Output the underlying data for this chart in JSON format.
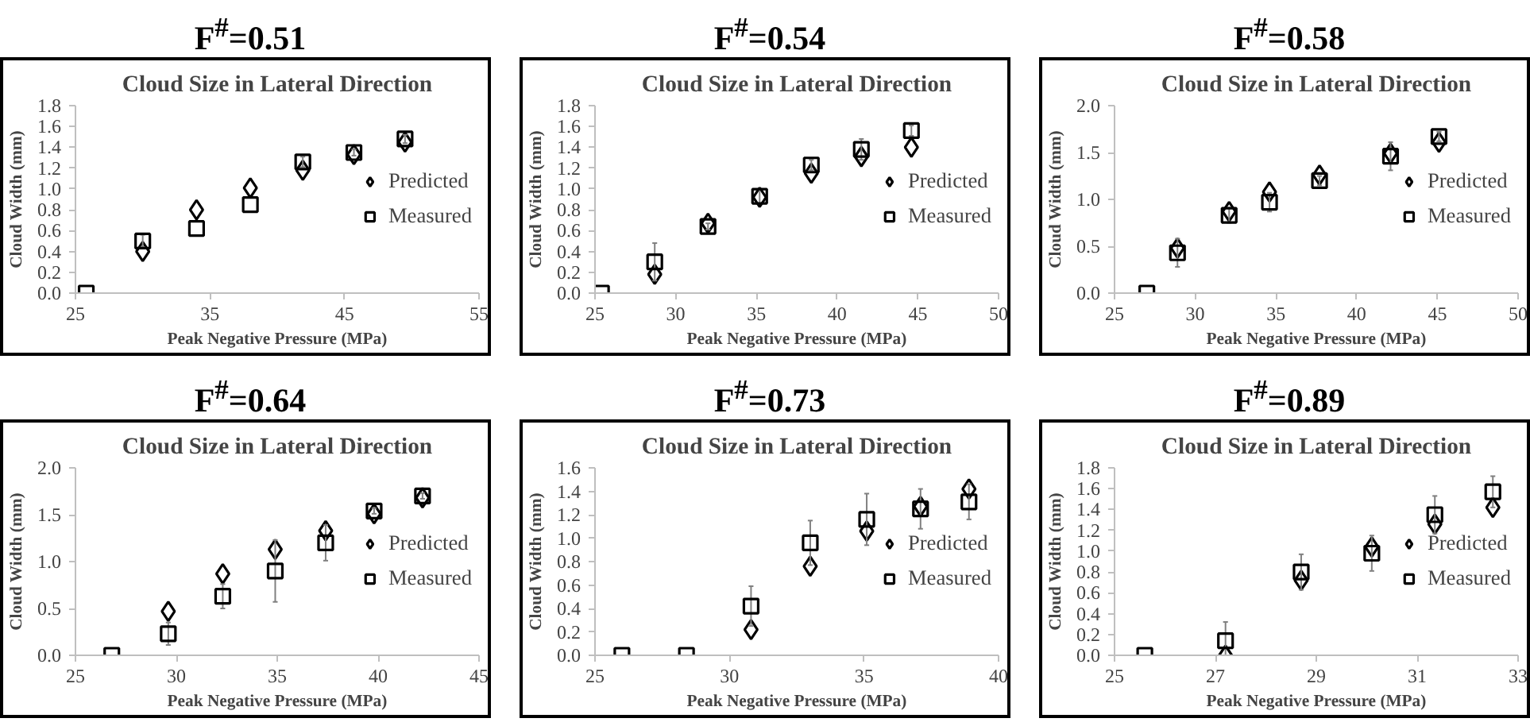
{
  "chart_data": [
    {
      "type": "scatter",
      "title": "F$^{#}$=0.51",
      "subtitle": "Cloud Size in Lateral Direction",
      "xlabel": "Peak Negative Pressure (MPa)",
      "ylabel": "Cloud Width (mm)",
      "xlim": [
        25,
        55
      ],
      "xticks": [
        25,
        35,
        45,
        55
      ],
      "ylim": [
        0,
        1.8
      ],
      "yticks": [
        {
          "value": 0,
          "label": "0.0"
        },
        0.2,
        0.4,
        0.6,
        0.8,
        {
          "value": 1,
          "label": "1.0"
        },
        1.2,
        1.4,
        1.6,
        1.8
      ],
      "grid": false,
      "legend": "right",
      "series": [
        {
          "name": "Predicted",
          "color": "#000000",
          "marker": "diamond",
          "x": [
            30,
            34,
            38,
            41.9,
            45.7,
            49.5
          ],
          "values": [
            0.4,
            0.8,
            1.01,
            1.18,
            1.33,
            1.45
          ]
        },
        {
          "name": "Measured",
          "color": "#000000",
          "marker": "square",
          "x": [
            25.8,
            30,
            34,
            38,
            41.9,
            45.7,
            49.5
          ],
          "values": [
            0,
            0.5,
            0.62,
            0.85,
            1.26,
            1.35,
            1.48
          ],
          "errors": [
            null,
            0.06,
            null,
            null,
            0.05,
            0.03,
            0.04
          ]
        }
      ]
    },
    {
      "type": "scatter",
      "title": "F$^{#}$=0.54",
      "subtitle": "Cloud Size in Lateral Direction",
      "xlabel": "Peak Negative Pressure (MPa)",
      "ylabel": "Cloud Width (mm)",
      "xlim": [
        25,
        50
      ],
      "xticks": [
        25,
        30,
        35,
        40,
        45,
        50
      ],
      "ylim": [
        0,
        1.8
      ],
      "yticks": [
        {
          "value": 0,
          "label": "0.0"
        },
        0.2,
        0.4,
        0.6,
        0.8,
        {
          "value": 1,
          "label": "1.0"
        },
        1.2,
        1.4,
        1.6,
        1.8
      ],
      "grid": false,
      "legend": "right",
      "series": [
        {
          "name": "Predicted",
          "color": "#000000",
          "marker": "diamond",
          "x": [
            28.7,
            32,
            35.2,
            38.4,
            41.5,
            44.6
          ],
          "values": [
            0.18,
            0.67,
            0.92,
            1.15,
            1.31,
            1.4
          ]
        },
        {
          "name": "Measured",
          "color": "#000000",
          "marker": "square",
          "x": [
            25.4,
            28.7,
            32,
            35.2,
            38.4,
            41.5,
            44.6
          ],
          "values": [
            0,
            0.3,
            0.64,
            0.93,
            1.23,
            1.38,
            1.56
          ],
          "errors": [
            null,
            0.18,
            0.03,
            0.07,
            0.05,
            0.1,
            0.05
          ]
        }
      ]
    },
    {
      "type": "scatter",
      "title": "F$^{#}$=0.58",
      "subtitle": "Cloud Size in Lateral Direction",
      "xlabel": "Peak Negative Pressure (MPa)",
      "ylabel": "Cloud Width (mm)",
      "xlim": [
        25,
        50
      ],
      "xticks": [
        25,
        30,
        35,
        40,
        45,
        50
      ],
      "ylim": [
        0,
        2
      ],
      "yticks": [
        {
          "value": 0,
          "label": "0.0"
        },
        0.5,
        {
          "value": 1,
          "label": "1.0"
        },
        1.5,
        {
          "value": 2,
          "label": "2.0"
        }
      ],
      "grid": false,
      "legend": "right",
      "series": [
        {
          "name": "Predicted",
          "color": "#000000",
          "marker": "diamond",
          "x": [
            28.9,
            32.1,
            34.6,
            37.7,
            42.1,
            45.1
          ],
          "values": [
            0.48,
            0.87,
            1.08,
            1.26,
            1.49,
            1.61
          ]
        },
        {
          "name": "Measured",
          "color": "#000000",
          "marker": "square",
          "x": [
            27,
            28.9,
            32.1,
            34.6,
            37.7,
            42.1,
            45.1
          ],
          "values": [
            0,
            0.43,
            0.83,
            0.97,
            1.2,
            1.46,
            1.67
          ],
          "errors": [
            null,
            0.15,
            0.08,
            0.1,
            0.05,
            0.15,
            0.05
          ]
        }
      ]
    },
    {
      "type": "scatter",
      "title": "F$^{#}$=0.64",
      "subtitle": "Cloud Size in Lateral Direction",
      "xlabel": "Peak Negative Pressure (MPa)",
      "ylabel": "Cloud Width (mm)",
      "xlim": [
        25,
        45
      ],
      "xticks": [
        25,
        30,
        35,
        40,
        45
      ],
      "ylim": [
        0,
        2
      ],
      "yticks": [
        {
          "value": 0,
          "label": "0.0"
        },
        0.5,
        {
          "value": 1,
          "label": "1.0"
        },
        1.5,
        {
          "value": 2,
          "label": "2.0"
        }
      ],
      "grid": false,
      "legend": "right",
      "series": [
        {
          "name": "Predicted",
          "color": "#000000",
          "marker": "diamond",
          "x": [
            29.6,
            32.3,
            34.9,
            37.4,
            39.8,
            42.2
          ],
          "values": [
            0.47,
            0.87,
            1.13,
            1.33,
            1.51,
            1.68
          ]
        },
        {
          "name": "Measured",
          "color": "#000000",
          "marker": "square",
          "x": [
            26.8,
            29.6,
            32.3,
            34.9,
            37.4,
            39.8,
            42.2
          ],
          "values": [
            0,
            0.23,
            0.63,
            0.9,
            1.2,
            1.54,
            1.7
          ],
          "errors": [
            null,
            0.12,
            0.13,
            0.33,
            0.19,
            0.03,
            0.03
          ]
        }
      ]
    },
    {
      "type": "scatter",
      "title": "F$^{#}$=0.73",
      "subtitle": "Cloud Size in Lateral Direction",
      "xlabel": "Peak Negative Pressure (MPa)",
      "ylabel": "Cloud Width (mm)",
      "xlim": [
        25,
        40
      ],
      "xticks": [
        25,
        30,
        35,
        40
      ],
      "ylim": [
        0,
        1.6
      ],
      "yticks": [
        {
          "value": 0,
          "label": "0.0"
        },
        0.2,
        0.4,
        0.6,
        0.8,
        {
          "value": 1,
          "label": "1.0"
        },
        1.2,
        1.4,
        1.6
      ],
      "grid": false,
      "legend": "right",
      "series": [
        {
          "name": "Predicted",
          "color": "#000000",
          "marker": "diamond",
          "x": [
            30.8,
            33,
            35.1,
            37.1,
            38.9
          ],
          "values": [
            0.22,
            0.76,
            1.06,
            1.27,
            1.42
          ]
        },
        {
          "name": "Measured",
          "color": "#000000",
          "marker": "square",
          "x": [
            26,
            28.4,
            30.8,
            33,
            35.1,
            37.1,
            38.9
          ],
          "values": [
            0,
            0,
            0.42,
            0.96,
            1.16,
            1.25,
            1.31
          ],
          "errors": [
            null,
            null,
            0.17,
            0.19,
            0.22,
            0.17,
            0.15
          ]
        }
      ]
    },
    {
      "type": "scatter",
      "title": "F$^{#}$=0.89",
      "subtitle": "Cloud Size in Lateral Direction",
      "xlabel": "Peak Negative Pressure (MPa)",
      "ylabel": "Cloud Width (mm)",
      "xlim": [
        25,
        33
      ],
      "xticks": [
        25,
        27,
        29,
        31,
        33
      ],
      "ylim": [
        0,
        1.8
      ],
      "yticks": [
        {
          "value": 0,
          "label": "0.0"
        },
        0.2,
        0.4,
        0.6,
        0.8,
        {
          "value": 1,
          "label": "1.0"
        },
        1.2,
        1.4,
        1.6,
        1.8
      ],
      "grid": false,
      "legend": "right",
      "series": [
        {
          "name": "Predicted",
          "color": "#000000",
          "marker": "diamond",
          "x": [
            27.2,
            28.7,
            30.1,
            31.35,
            32.5
          ],
          "values": [
            0,
            0.72,
            1.04,
            1.26,
            1.42
          ]
        },
        {
          "name": "Measured",
          "color": "#000000",
          "marker": "square",
          "x": [
            25.6,
            27.2,
            28.7,
            30.1,
            31.35,
            32.5
          ],
          "values": [
            0,
            0.14,
            0.8,
            0.98,
            1.35,
            1.57
          ],
          "errors": [
            null,
            0.18,
            0.17,
            0.17,
            0.18,
            0.15
          ]
        }
      ]
    }
  ]
}
